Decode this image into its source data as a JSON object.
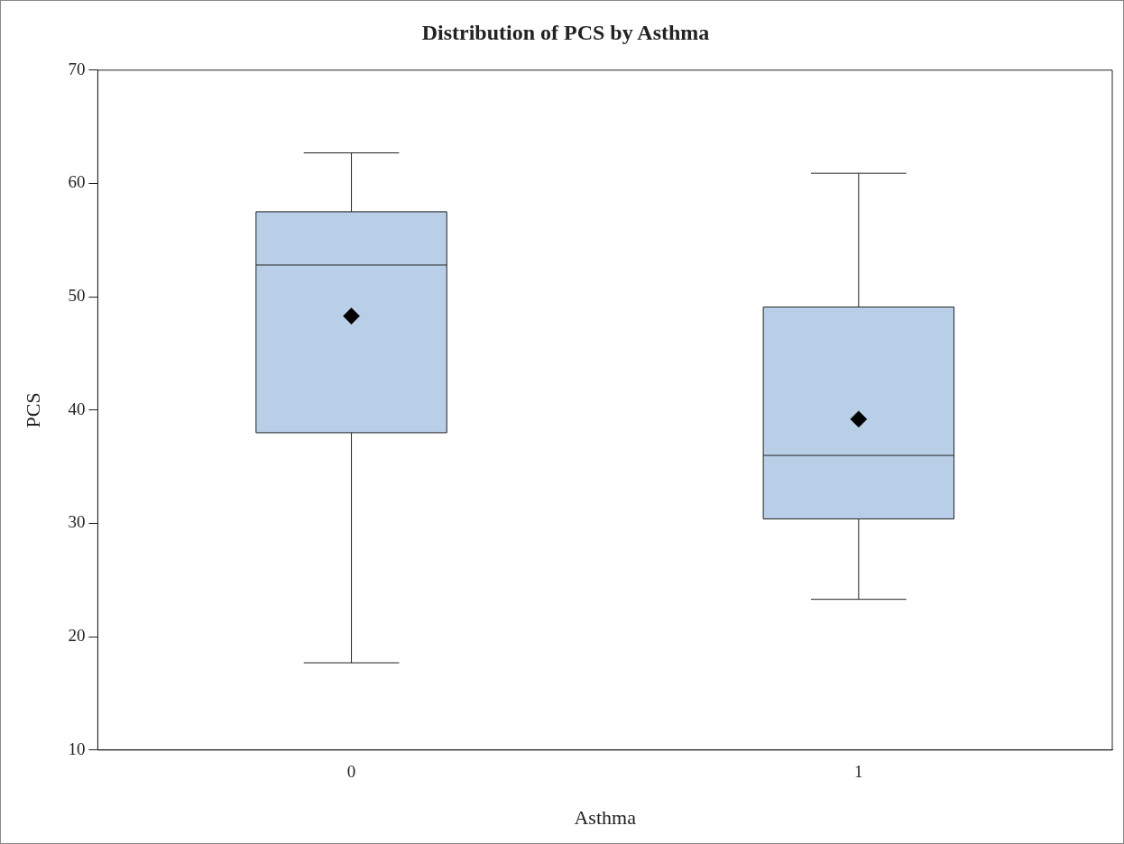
{
  "chart_data": {
    "type": "box",
    "title": "Distribution of PCS by Asthma",
    "xlabel": "Asthma",
    "ylabel": "PCS",
    "categories": [
      "0",
      "1"
    ],
    "color": "#b9cfe7",
    "marker": "diamond",
    "boxes": [
      {
        "low": 17.7,
        "q1": 38.0,
        "median": 52.8,
        "q3": 57.5,
        "high": 62.7,
        "mean": 48.3
      },
      {
        "low": 23.3,
        "q1": 30.4,
        "median": 36.0,
        "q3": 49.1,
        "high": 60.9,
        "mean": 39.2
      }
    ],
    "ylim": [
      10,
      70
    ],
    "yticks": [
      10,
      20,
      30,
      40,
      50,
      60,
      70
    ],
    "grid": false,
    "legend": false
  }
}
